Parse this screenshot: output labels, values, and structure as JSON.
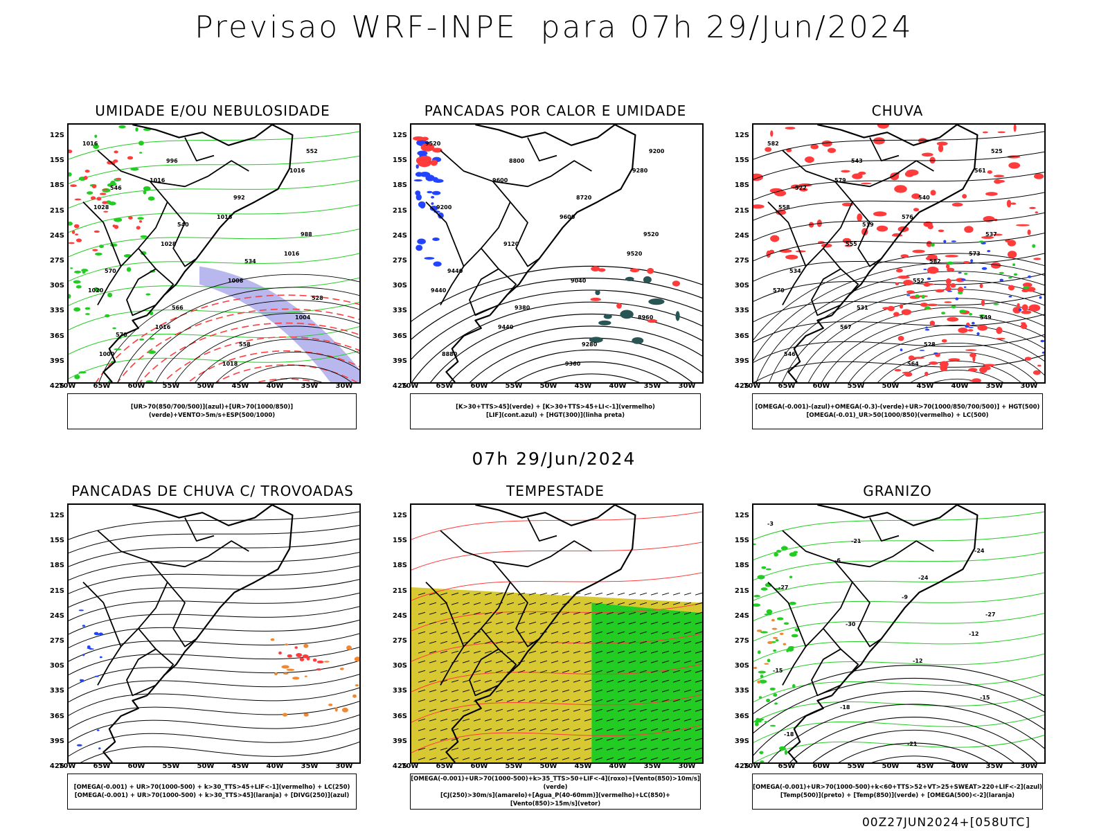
{
  "header": {
    "title": "Previsao WRF-INPE  para 07h 29/Jun/2024",
    "mid_title": "07h 29/Jun/2024",
    "footer": "00Z27JUN2024+[058UTC]"
  },
  "axes": {
    "lat_labels": [
      "12S",
      "15S",
      "18S",
      "21S",
      "24S",
      "27S",
      "30S",
      "33S",
      "36S",
      "39S",
      "42S"
    ],
    "lon_labels": [
      "70W",
      "65W",
      "60W",
      "55W",
      "50W",
      "45W",
      "40W",
      "35W",
      "30W"
    ]
  },
  "colors": {
    "contour": "#000000",
    "red": "#ff3b3b",
    "green": "#22cc22",
    "blue": "#2244ff",
    "lavender": "#b8b8ee",
    "yellow": "#d8c832",
    "orange": "#ee8833",
    "teal": "#2a5555"
  },
  "chart_data": [
    {
      "type": "map",
      "title": "UMIDADE E/OU NEBULOSIDADE",
      "legend": [
        "[UR>70(850/700/500)](azul)+[UR>70(1000/850)](verde)+VENTO>5m/s+ESP(500/1000)"
      ],
      "contour_labels": [
        "1016",
        "1016",
        "1016",
        "1016",
        "1020",
        "1016",
        "1018",
        "1016",
        "1028",
        "1028",
        "1008",
        "1004",
        "1000",
        "996",
        "992",
        "988",
        "570",
        "566",
        "558",
        "552",
        "546",
        "540",
        "534",
        "528",
        "570"
      ]
    },
    {
      "type": "map",
      "title": "PANCADAS POR CALOR E UMIDADE",
      "legend": [
        "[K>30+TTS>45](verde) + [K>30+TTS>45+LI<-1](vermelho)",
        "[LIF](cont.azul) + [HGT(300)](linha preta)"
      ],
      "contour_labels": [
        "9520",
        "9600",
        "9600",
        "9520",
        "9440",
        "9440",
        "9360",
        "9280",
        "9200",
        "9120",
        "9040",
        "8960",
        "8880",
        "8800",
        "8720",
        "9520",
        "9440",
        "9380",
        "9280",
        "9200"
      ]
    },
    {
      "type": "map",
      "title": "CHUVA",
      "legend": [
        "[OMEGA(-0.001)-(azul)+OMEGA(-0.3)-(verde)+UR>70(1000/850/700/500)] + HGT(500)",
        "[OMEGA(-0.01)_UR>50(1000/850)(vermelho) + LC(500)"
      ],
      "contour_labels": [
        "582",
        "579",
        "576",
        "573",
        "570",
        "567",
        "564",
        "561",
        "558",
        "555",
        "552",
        "549",
        "546",
        "543",
        "540",
        "537",
        "534",
        "531",
        "528",
        "525",
        "522",
        "519",
        "582"
      ]
    },
    {
      "type": "map",
      "title": "PANCADAS DE CHUVA C/ TROVOADAS",
      "legend": [
        "[OMEGA(-0.001) + UR>70(1000-500) + k>30_TTS>45+LIF<-1](vermelho) + LC(250)",
        "[OMEGA(-0.001) + UR>70(1000-500) + k>30_TTS>45](laranja) + [DIVG(250)](azul)"
      ],
      "contour_labels": []
    },
    {
      "type": "map",
      "title": "TEMPESTADE",
      "legend": [
        "[OMEGA(-0.001)+UR>70(1000-500)+k>35_TTS>50+LIF<-4](roxo)+[Vento(850)>10m/s](verde)",
        "[CJ(250)>30m/s](amarelo)+[Agua_P(40-60mm)](vermelho)+LC(850)+[Vento(850)>15m/s](vetor)"
      ],
      "contour_labels": []
    },
    {
      "type": "map",
      "title": "GRANIZO",
      "legend": [
        "[OMEGA(-0.001)+UR>70(1000-500)+k<60+TTS>52+VT>25+SWEAT>220+LIF<-2](azul)",
        "[Temp(500)](preto) + [Temp(850)](verde) + [OMEGA(500)<-2](laranja)"
      ],
      "contour_labels": [
        "-3",
        "-6",
        "-9",
        "-12",
        "-15",
        "-18",
        "-21",
        "-24",
        "-27",
        "-30",
        "-12",
        "-15",
        "-18",
        "-21",
        "-24",
        "-27"
      ]
    }
  ]
}
